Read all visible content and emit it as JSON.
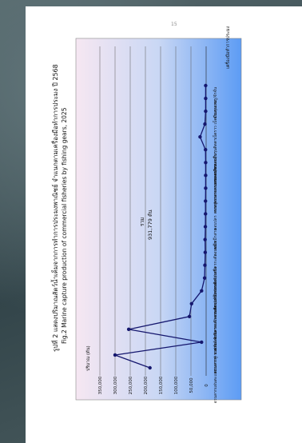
{
  "page_number": "15",
  "figure_title_th": "รูปที่ 2 แสดงปริมาณสัตว์น้ำเค็มจากการทำการประมงพาณิชย์ จำแนกตามเครื่องมือทำการประมง ปี 2568",
  "figure_title_en": "Fig.2 Marine capture production of commercial fisheries by fishing gears, 2025",
  "colors": {
    "line": "#15176e",
    "gradient_start": "#f6e7f2",
    "gradient_mid": "#c9d7f4",
    "gradient_end": "#5d9cf4",
    "grid": "#5a5a5a"
  },
  "chart_data": {
    "type": "line",
    "ylabel": "ปริมาณ (ตัน)",
    "xlabel": "เครื่องมือทำการประมง",
    "ylim": [
      0,
      350000
    ],
    "yticks": [
      "0",
      "50,000",
      "100,000",
      "150,000",
      "200,000",
      "250,000",
      "300,000",
      "350,000"
    ],
    "total_label": "รวม",
    "total_value": "931,779 ตัน",
    "categories": [
      "อวนลากแผ่นตะแผง",
      "อวนลากคู่",
      "อวนลากคานถ่าง",
      "อวนล้อมจับ",
      "อวนล้อมจับปลากะตัก",
      "อวนครอบปลากะตัก",
      "อวนครอบหมึก",
      "อวนช้อน/ยกปลากะตัก",
      "อวนล้อมปลากะตักเหยื่อ",
      "อวนช้อน/ยกปลากะตัก",
      "ลอบหมึก",
      "ลอบหมึกสาย",
      "ลอบปลา",
      "ลอบปู",
      "คราดหอยลาย",
      "คราดหอยแครง",
      "คราดหอยเสียบ",
      "คราดหอยอื่นๆ",
      "อวนลอย/อวนจม/อวนติดตา",
      "เบ็ดราว",
      "เบ็ดมือ",
      "อวนรุนเคย",
      "และอวนรู/จักจั่น"
    ],
    "values": [
      185000,
      300000,
      15000,
      255000,
      55000,
      48000,
      15000,
      5000,
      4000,
      3000,
      3500,
      2500,
      2000,
      2000,
      1500,
      1500,
      1500,
      2000,
      20000,
      4000,
      1500,
      1500,
      1500
    ]
  }
}
